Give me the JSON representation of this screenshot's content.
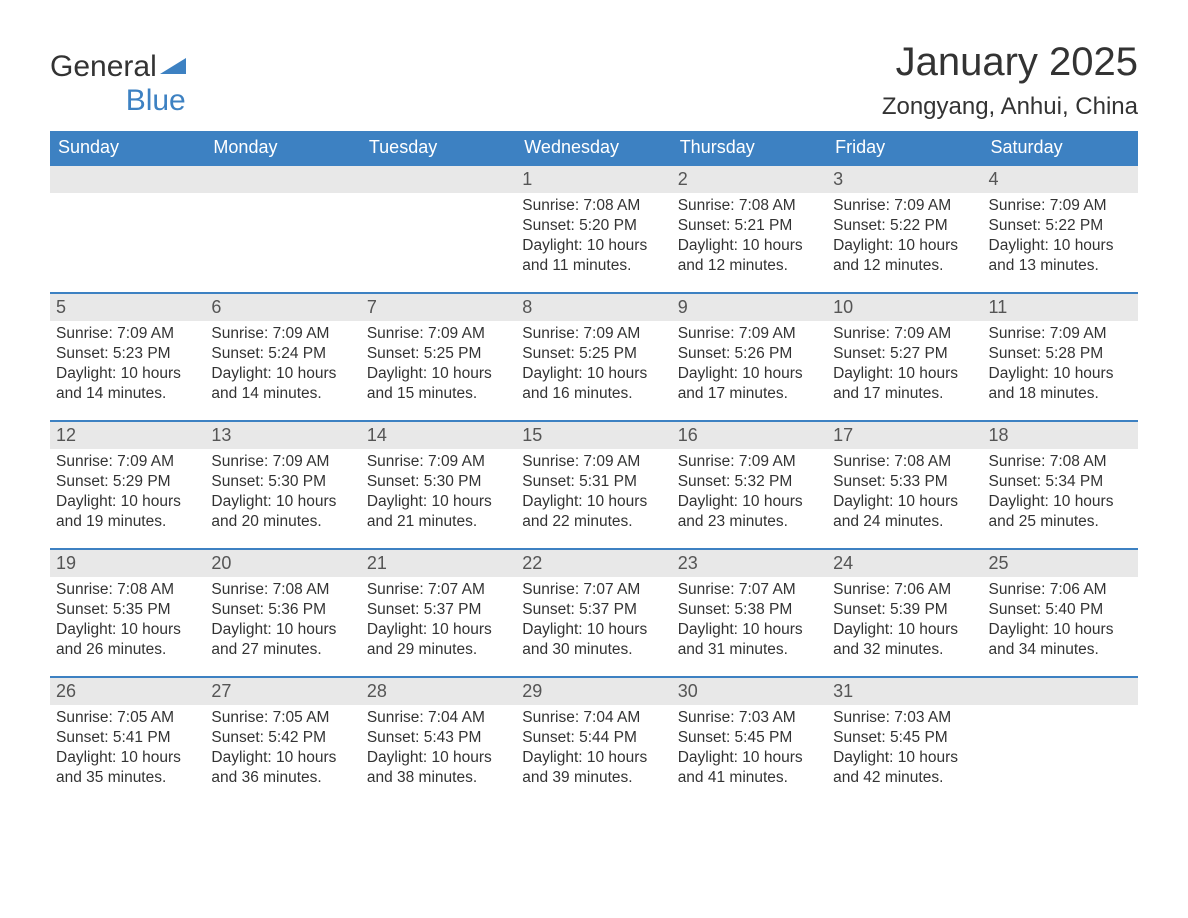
{
  "brand": {
    "part1": "General",
    "part2": "Blue",
    "icon_color": "#3d81c2"
  },
  "title": "January 2025",
  "location": "Zongyang, Anhui, China",
  "labels": {
    "sunrise": "Sunrise: ",
    "sunset": "Sunset: ",
    "daylight": "Daylight: "
  },
  "colors": {
    "header_bg": "#3d81c2",
    "header_text": "#ffffff",
    "daynum_bg": "#e8e8e8",
    "daynum_border": "#3d81c2",
    "body_text": "#333333",
    "page_bg": "#ffffff"
  },
  "weekdays": [
    "Sunday",
    "Monday",
    "Tuesday",
    "Wednesday",
    "Thursday",
    "Friday",
    "Saturday"
  ],
  "weeks": [
    [
      {
        "empty": true
      },
      {
        "empty": true
      },
      {
        "empty": true
      },
      {
        "day": 1,
        "sunrise": "7:08 AM",
        "sunset": "5:20 PM",
        "daylight": "10 hours and 11 minutes."
      },
      {
        "day": 2,
        "sunrise": "7:08 AM",
        "sunset": "5:21 PM",
        "daylight": "10 hours and 12 minutes."
      },
      {
        "day": 3,
        "sunrise": "7:09 AM",
        "sunset": "5:22 PM",
        "daylight": "10 hours and 12 minutes."
      },
      {
        "day": 4,
        "sunrise": "7:09 AM",
        "sunset": "5:22 PM",
        "daylight": "10 hours and 13 minutes."
      }
    ],
    [
      {
        "day": 5,
        "sunrise": "7:09 AM",
        "sunset": "5:23 PM",
        "daylight": "10 hours and 14 minutes."
      },
      {
        "day": 6,
        "sunrise": "7:09 AM",
        "sunset": "5:24 PM",
        "daylight": "10 hours and 14 minutes."
      },
      {
        "day": 7,
        "sunrise": "7:09 AM",
        "sunset": "5:25 PM",
        "daylight": "10 hours and 15 minutes."
      },
      {
        "day": 8,
        "sunrise": "7:09 AM",
        "sunset": "5:25 PM",
        "daylight": "10 hours and 16 minutes."
      },
      {
        "day": 9,
        "sunrise": "7:09 AM",
        "sunset": "5:26 PM",
        "daylight": "10 hours and 17 minutes."
      },
      {
        "day": 10,
        "sunrise": "7:09 AM",
        "sunset": "5:27 PM",
        "daylight": "10 hours and 17 minutes."
      },
      {
        "day": 11,
        "sunrise": "7:09 AM",
        "sunset": "5:28 PM",
        "daylight": "10 hours and 18 minutes."
      }
    ],
    [
      {
        "day": 12,
        "sunrise": "7:09 AM",
        "sunset": "5:29 PM",
        "daylight": "10 hours and 19 minutes."
      },
      {
        "day": 13,
        "sunrise": "7:09 AM",
        "sunset": "5:30 PM",
        "daylight": "10 hours and 20 minutes."
      },
      {
        "day": 14,
        "sunrise": "7:09 AM",
        "sunset": "5:30 PM",
        "daylight": "10 hours and 21 minutes."
      },
      {
        "day": 15,
        "sunrise": "7:09 AM",
        "sunset": "5:31 PM",
        "daylight": "10 hours and 22 minutes."
      },
      {
        "day": 16,
        "sunrise": "7:09 AM",
        "sunset": "5:32 PM",
        "daylight": "10 hours and 23 minutes."
      },
      {
        "day": 17,
        "sunrise": "7:08 AM",
        "sunset": "5:33 PM",
        "daylight": "10 hours and 24 minutes."
      },
      {
        "day": 18,
        "sunrise": "7:08 AM",
        "sunset": "5:34 PM",
        "daylight": "10 hours and 25 minutes."
      }
    ],
    [
      {
        "day": 19,
        "sunrise": "7:08 AM",
        "sunset": "5:35 PM",
        "daylight": "10 hours and 26 minutes."
      },
      {
        "day": 20,
        "sunrise": "7:08 AM",
        "sunset": "5:36 PM",
        "daylight": "10 hours and 27 minutes."
      },
      {
        "day": 21,
        "sunrise": "7:07 AM",
        "sunset": "5:37 PM",
        "daylight": "10 hours and 29 minutes."
      },
      {
        "day": 22,
        "sunrise": "7:07 AM",
        "sunset": "5:37 PM",
        "daylight": "10 hours and 30 minutes."
      },
      {
        "day": 23,
        "sunrise": "7:07 AM",
        "sunset": "5:38 PM",
        "daylight": "10 hours and 31 minutes."
      },
      {
        "day": 24,
        "sunrise": "7:06 AM",
        "sunset": "5:39 PM",
        "daylight": "10 hours and 32 minutes."
      },
      {
        "day": 25,
        "sunrise": "7:06 AM",
        "sunset": "5:40 PM",
        "daylight": "10 hours and 34 minutes."
      }
    ],
    [
      {
        "day": 26,
        "sunrise": "7:05 AM",
        "sunset": "5:41 PM",
        "daylight": "10 hours and 35 minutes."
      },
      {
        "day": 27,
        "sunrise": "7:05 AM",
        "sunset": "5:42 PM",
        "daylight": "10 hours and 36 minutes."
      },
      {
        "day": 28,
        "sunrise": "7:04 AM",
        "sunset": "5:43 PM",
        "daylight": "10 hours and 38 minutes."
      },
      {
        "day": 29,
        "sunrise": "7:04 AM",
        "sunset": "5:44 PM",
        "daylight": "10 hours and 39 minutes."
      },
      {
        "day": 30,
        "sunrise": "7:03 AM",
        "sunset": "5:45 PM",
        "daylight": "10 hours and 41 minutes."
      },
      {
        "day": 31,
        "sunrise": "7:03 AM",
        "sunset": "5:45 PM",
        "daylight": "10 hours and 42 minutes."
      },
      {
        "empty": true
      }
    ]
  ]
}
